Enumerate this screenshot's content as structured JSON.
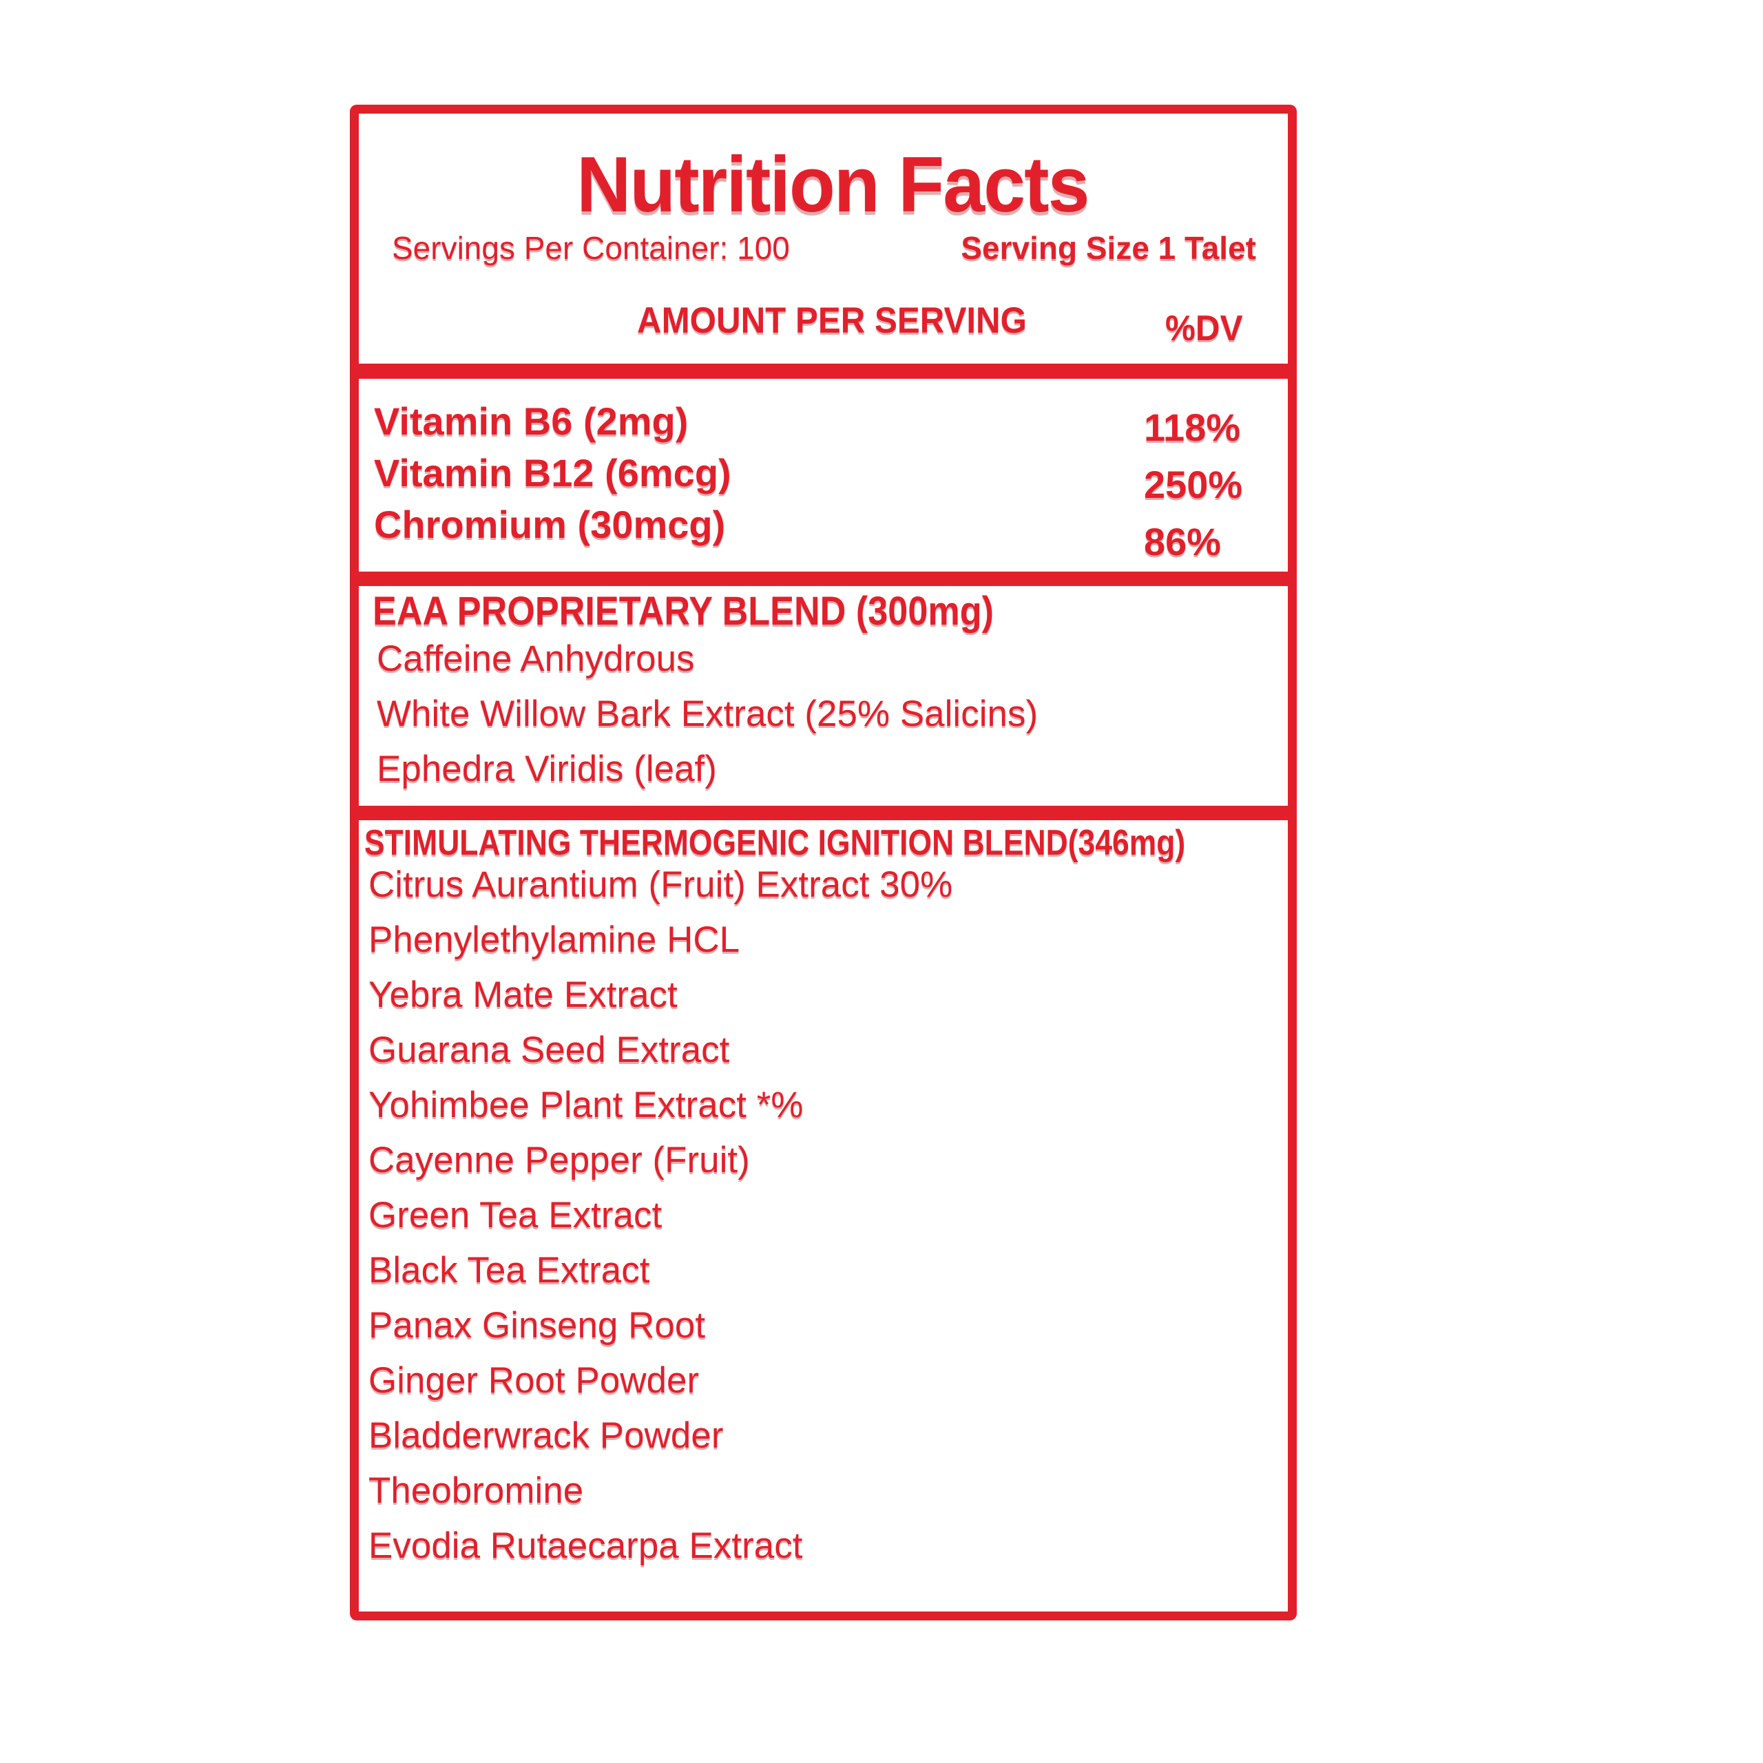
{
  "label": {
    "title": "Nutrition Facts",
    "servings_per_container": "Servings Per Container: 100",
    "serving_size": "Serving Size 1 Talet",
    "amount_per_serving": "AMOUNT PER SERVING",
    "dv_header": "%DV",
    "vitamins": [
      {
        "name": "Vitamin B6 (2mg)",
        "dv": "118%"
      },
      {
        "name": "Vitamin B12 (6mcg)",
        "dv": "250%"
      },
      {
        "name": "Chromium (30mcg)",
        "dv": "86%"
      }
    ],
    "blend1": {
      "header": "EAA PROPRIETARY BLEND (300mg)",
      "items": [
        "Caffeine Anhydrous",
        "White Willow Bark Extract (25% Salicins)",
        "Ephedra Viridis (leaf)"
      ]
    },
    "blend2": {
      "header": "STIMULATING THERMOGENIC IGNITION BLEND(346mg)",
      "items": [
        "Citrus Aurantium (Fruit) Extract 30%",
        "Phenylethylamine HCL",
        "Yebra Mate Extract",
        "Guarana Seed Extract",
        "Yohimbee Plant Extract *%",
        "Cayenne Pepper (Fruit)",
        "Green Tea Extract",
        "Black Tea Extract",
        "Panax Ginseng Root",
        "Ginger Root Powder",
        "Bladderwrack Powder",
        "Theobromine",
        "Evodia Rutaecarpa Extract"
      ]
    },
    "colors": {
      "red": "#E2202B",
      "background": "#FFFFFF"
    }
  }
}
